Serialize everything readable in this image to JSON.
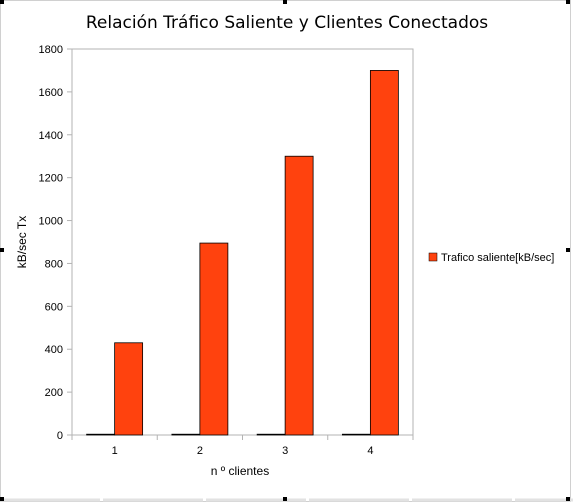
{
  "chart_data": {
    "type": "bar",
    "title": "Relación Tráfico Saliente y Clientes Conectados",
    "xlabel": "n º clientes",
    "ylabel": "kB/sec  Tx",
    "categories": [
      "1",
      "2",
      "3",
      "4"
    ],
    "ylim": [
      0,
      1800
    ],
    "yticks": [
      0,
      200,
      400,
      600,
      800,
      1000,
      1200,
      1400,
      1600,
      1800
    ],
    "grid": false,
    "legend_position": "right",
    "series": [
      {
        "name": "",
        "color": "#004586",
        "values": [
          0,
          0,
          0,
          0
        ]
      },
      {
        "name": "Trafico saliente[kB/sec]",
        "color": "#ff420e",
        "values": [
          430,
          895,
          1300,
          1700
        ]
      }
    ]
  }
}
